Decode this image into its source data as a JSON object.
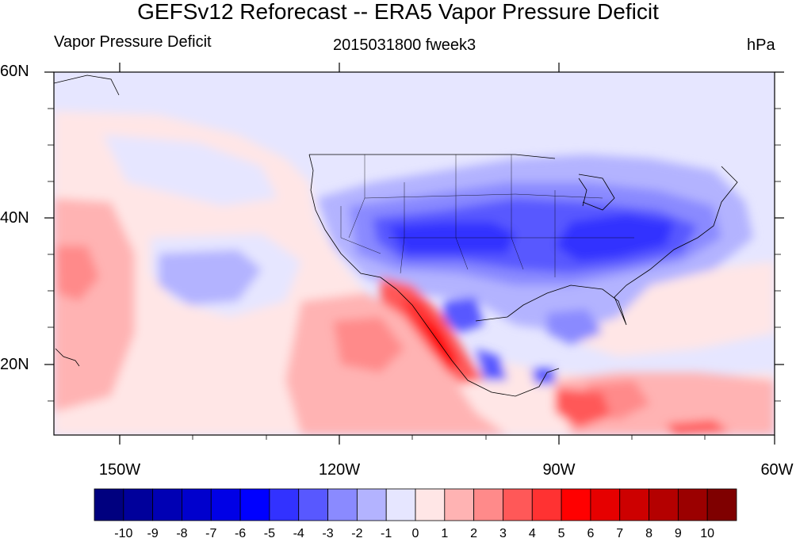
{
  "title": "GEFSv12 Reforecast -- ERA5 Vapor Pressure Deficit",
  "left_label": "Vapor Pressure Deficit",
  "center_label": "2015031800 fweek3",
  "right_label": "hPa",
  "lat_labels": [
    "60N",
    "40N",
    "20N"
  ],
  "lon_labels": [
    "150W",
    "120W",
    "90W",
    "60W"
  ],
  "colorbar": {
    "labels": [
      "-10",
      "-9",
      "-8",
      "-7",
      "-6",
      "-5",
      "-4",
      "-3",
      "-2",
      "-1",
      "0",
      "1",
      "2",
      "3",
      "4",
      "5",
      "6",
      "7",
      "8",
      "9",
      "10"
    ],
    "colors": [
      "#00007f",
      "#00009b",
      "#0000b4",
      "#0000cd",
      "#0000e6",
      "#0000ff",
      "#3232ff",
      "#5858ff",
      "#8a8aff",
      "#b3b3ff",
      "#e6e6ff",
      "#ffe6e6",
      "#ffb3b3",
      "#ff8a8a",
      "#ff5858",
      "#ff3232",
      "#ff0000",
      "#e60000",
      "#cd0000",
      "#b40000",
      "#9b0000",
      "#7f0000"
    ]
  },
  "map": {
    "extent": {
      "lon_min": -160,
      "lon_max": -61,
      "lat_min": 10,
      "lat_max": 60
    },
    "background_color": "#e6e6ff"
  }
}
